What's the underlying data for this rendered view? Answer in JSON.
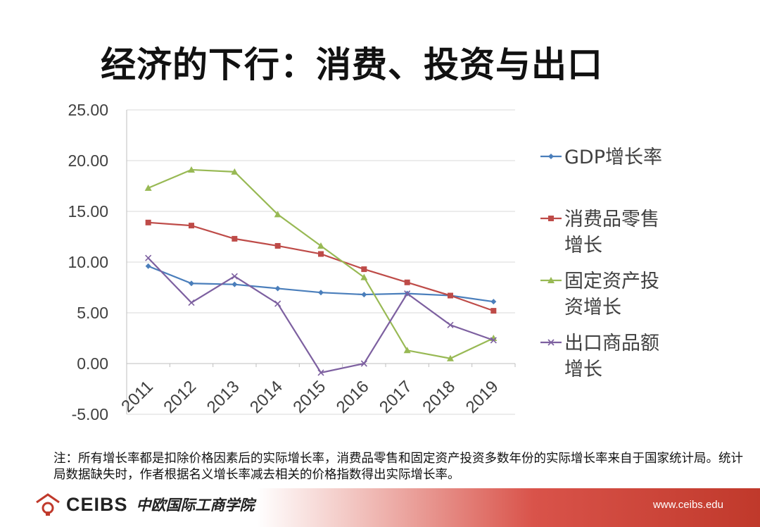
{
  "slide": {
    "title": "经济的下行：消费、投资与出口",
    "note": "注：所有增长率都是扣除价格因素后的实际增长率，消费品零售和固定资产投资多数年份的实际增长率来自于国家统计局。统计局数据缺失时，作者根据名义增长率减去相关的价格指数得出实际增长率。",
    "footer_logo_text": "CEIBS",
    "footer_logo_cn": "中欧国际工商学院",
    "footer_url": "www.ceibs.edu"
  },
  "chart_data": {
    "type": "line",
    "title": "",
    "xlabel": "",
    "ylabel": "",
    "categories": [
      "2011",
      "2012",
      "2013",
      "2014",
      "2015",
      "2016",
      "2017",
      "2018",
      "2019"
    ],
    "ylim": [
      -5,
      25
    ],
    "yticks": [
      "25.00",
      "20.00",
      "15.00",
      "10.00",
      "5.00",
      "0.00",
      "-5.00"
    ],
    "grid": "horizontal",
    "legend": "right",
    "series": [
      {
        "name": "GDP增长率",
        "legend_lines": [
          "GDP增长率"
        ],
        "color": "#4a7ebb",
        "marker": "diamond",
        "values": [
          9.6,
          7.9,
          7.8,
          7.4,
          7.0,
          6.8,
          6.9,
          6.7,
          6.1
        ]
      },
      {
        "name": "消费品零售增长",
        "legend_lines": [
          "消费品零售",
          "增长"
        ],
        "color": "#be4b48",
        "marker": "square",
        "values": [
          13.9,
          13.6,
          12.3,
          11.6,
          10.8,
          9.3,
          8.0,
          6.7,
          5.2
        ]
      },
      {
        "name": "固定资产投资增长",
        "legend_lines": [
          "固定资产投",
          "资增长"
        ],
        "color": "#98b954",
        "marker": "triangle",
        "values": [
          17.3,
          19.1,
          18.9,
          14.7,
          11.6,
          8.5,
          1.3,
          0.5,
          2.5
        ]
      },
      {
        "name": "出口商品额增长",
        "legend_lines": [
          "出口商品额",
          "增长"
        ],
        "color": "#7d60a0",
        "marker": "x",
        "values": [
          10.4,
          6.0,
          8.6,
          5.9,
          -0.9,
          0.0,
          6.9,
          3.8,
          2.3
        ]
      }
    ]
  }
}
